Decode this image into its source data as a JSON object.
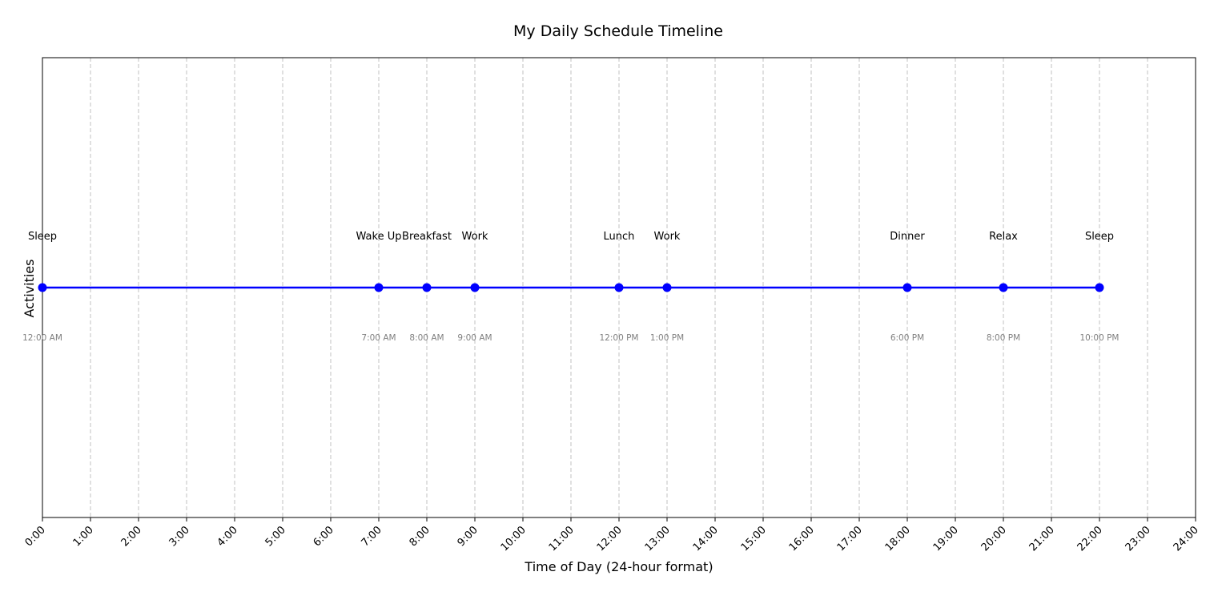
{
  "chart_data": {
    "type": "line",
    "title": "My Daily Schedule Timeline",
    "xlabel": "Time of Day (24-hour format)",
    "ylabel": "Activities",
    "xlim": [
      0,
      24
    ],
    "grid": "vertical dashed",
    "line_color": "#0000ff",
    "grid_color": "#c0c0c0",
    "x_tick_labels": [
      "0:00",
      "1:00",
      "2:00",
      "3:00",
      "4:00",
      "5:00",
      "6:00",
      "7:00",
      "8:00",
      "9:00",
      "10:00",
      "11:00",
      "12:00",
      "13:00",
      "14:00",
      "15:00",
      "16:00",
      "17:00",
      "18:00",
      "19:00",
      "20:00",
      "21:00",
      "22:00",
      "23:00",
      "24:00"
    ],
    "events": [
      {
        "hour": 0,
        "activity": "Sleep",
        "time": "12:00 AM"
      },
      {
        "hour": 7,
        "activity": "Wake Up",
        "time": "7:00 AM"
      },
      {
        "hour": 8,
        "activity": "Breakfast",
        "time": "8:00 AM"
      },
      {
        "hour": 9,
        "activity": "Work",
        "time": "9:00 AM"
      },
      {
        "hour": 12,
        "activity": "Lunch",
        "time": "12:00 PM"
      },
      {
        "hour": 13,
        "activity": "Work",
        "time": "1:00 PM"
      },
      {
        "hour": 18,
        "activity": "Dinner",
        "time": "6:00 PM"
      },
      {
        "hour": 20,
        "activity": "Relax",
        "time": "8:00 PM"
      },
      {
        "hour": 22,
        "activity": "Sleep",
        "time": "10:00 PM"
      }
    ]
  }
}
